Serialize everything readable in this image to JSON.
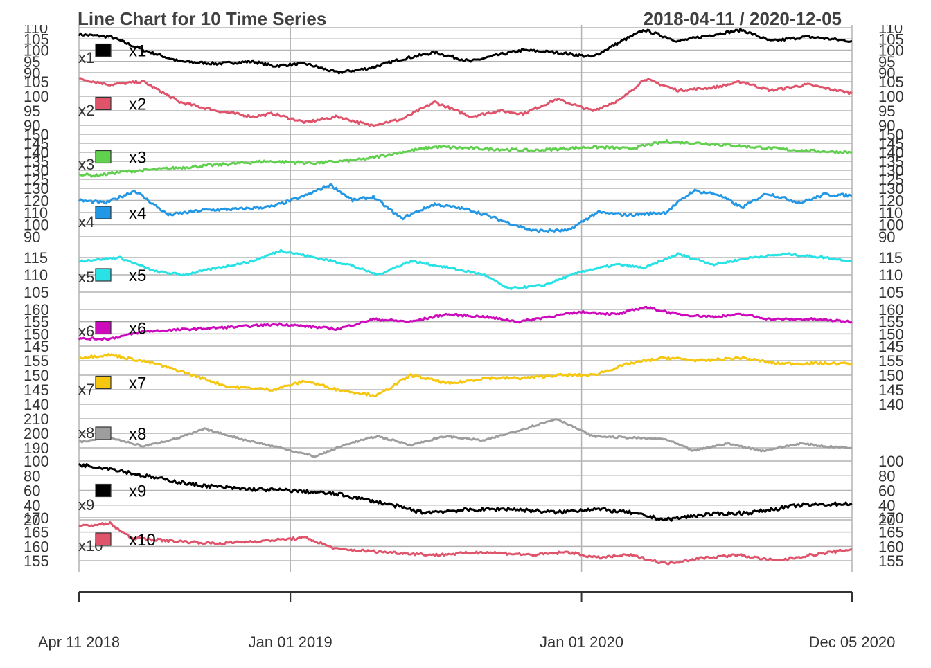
{
  "chart_data": {
    "type": "line",
    "title": "Line Chart for 10 Time Series",
    "date_range_text": "2018-04-11 / 2020-12-05",
    "x_start": "2018-04-11",
    "x_end": "2020-12-05",
    "x_ticks": [
      {
        "date": "2018-04-11",
        "label": "Apr 11 2018"
      },
      {
        "date": "2019-01-01",
        "label": "Jan 01 2019"
      },
      {
        "date": "2020-01-01",
        "label": "Jan 01 2020"
      },
      {
        "date": "2020-12-05",
        "label": "Dec 05 2020"
      }
    ],
    "grid": true,
    "legend": "per-panel, left",
    "panels": [
      {
        "name": "x1",
        "color": "#000000",
        "ylim": [
          90,
          110
        ],
        "y_ticks": [
          90,
          95,
          100,
          105,
          110
        ],
        "tick_labels": [
          "90",
          "95",
          "100",
          "105",
          "110"
        ],
        "right_axis": true,
        "points": [
          [
            "2018-04-11",
            107
          ],
          [
            "2018-05-20",
            106
          ],
          [
            "2018-07-01",
            100
          ],
          [
            "2018-08-15",
            95
          ],
          [
            "2018-10-01",
            94
          ],
          [
            "2018-11-15",
            95
          ],
          [
            "2018-12-10",
            93
          ],
          [
            "2019-01-20",
            94
          ],
          [
            "2019-03-01",
            90
          ],
          [
            "2019-04-10",
            92
          ],
          [
            "2019-05-20",
            96
          ],
          [
            "2019-07-01",
            99
          ],
          [
            "2019-08-15",
            95
          ],
          [
            "2019-09-20",
            98
          ],
          [
            "2019-10-20",
            100
          ],
          [
            "2019-12-01",
            99
          ],
          [
            "2020-01-15",
            97
          ],
          [
            "2020-02-20",
            104
          ],
          [
            "2020-03-20",
            109
          ],
          [
            "2020-05-01",
            104
          ],
          [
            "2020-06-15",
            107
          ],
          [
            "2020-07-20",
            109
          ],
          [
            "2020-08-25",
            104
          ],
          [
            "2020-10-10",
            106
          ],
          [
            "2020-12-05",
            104
          ]
        ]
      },
      {
        "name": "x2",
        "color": "#DF536B",
        "ylim": [
          90,
          105
        ],
        "y_ticks": [
          90,
          95,
          100,
          105
        ],
        "tick_labels": [
          "90",
          "95",
          "100",
          "105"
        ],
        "right_axis": true,
        "points": [
          [
            "2018-04-11",
            106
          ],
          [
            "2018-05-20",
            104
          ],
          [
            "2018-07-01",
            105
          ],
          [
            "2018-08-15",
            98
          ],
          [
            "2018-10-01",
            95
          ],
          [
            "2018-11-15",
            93
          ],
          [
            "2018-12-10",
            94
          ],
          [
            "2019-01-20",
            91
          ],
          [
            "2019-03-01",
            93
          ],
          [
            "2019-04-10",
            90
          ],
          [
            "2019-05-20",
            92
          ],
          [
            "2019-07-01",
            98
          ],
          [
            "2019-08-15",
            93
          ],
          [
            "2019-09-20",
            95
          ],
          [
            "2019-10-20",
            94
          ],
          [
            "2019-12-01",
            99
          ],
          [
            "2020-01-15",
            95
          ],
          [
            "2020-02-20",
            99
          ],
          [
            "2020-03-20",
            106
          ],
          [
            "2020-05-01",
            102
          ],
          [
            "2020-06-15",
            103
          ],
          [
            "2020-07-20",
            105
          ],
          [
            "2020-08-25",
            102
          ],
          [
            "2020-10-10",
            104
          ],
          [
            "2020-12-05",
            101
          ]
        ]
      },
      {
        "name": "x3",
        "color": "#61D04F",
        "ylim": [
          125,
          150
        ],
        "y_ticks": [
          125,
          130,
          135,
          140,
          145,
          150
        ],
        "tick_labels": [
          "125",
          "130",
          "135",
          "140",
          "145",
          "150"
        ],
        "right_axis": true,
        "points": [
          [
            "2018-04-11",
            128
          ],
          [
            "2018-05-01",
            127
          ],
          [
            "2018-06-01",
            129
          ],
          [
            "2018-08-01",
            131
          ],
          [
            "2018-10-01",
            133
          ],
          [
            "2018-12-01",
            135
          ],
          [
            "2019-02-01",
            134
          ],
          [
            "2019-04-01",
            136
          ],
          [
            "2019-06-01",
            141
          ],
          [
            "2019-07-01",
            143
          ],
          [
            "2019-09-01",
            142
          ],
          [
            "2019-11-01",
            141
          ],
          [
            "2020-01-15",
            143
          ],
          [
            "2020-03-01",
            142
          ],
          [
            "2020-04-15",
            146
          ],
          [
            "2020-06-01",
            145
          ],
          [
            "2020-08-01",
            143
          ],
          [
            "2020-10-01",
            141
          ],
          [
            "2020-12-05",
            140
          ]
        ]
      },
      {
        "name": "x4",
        "color": "#2297E6",
        "ylim": [
          90,
          130
        ],
        "y_ticks": [
          90,
          100,
          110,
          120,
          130
        ],
        "tick_labels": [
          "90",
          "100",
          "110",
          "120",
          "130"
        ],
        "right_axis": true,
        "points": [
          [
            "2018-04-11",
            120
          ],
          [
            "2018-05-15",
            118
          ],
          [
            "2018-06-20",
            128
          ],
          [
            "2018-08-01",
            108
          ],
          [
            "2018-09-15",
            112
          ],
          [
            "2018-11-01",
            113
          ],
          [
            "2018-12-10",
            115
          ],
          [
            "2019-01-20",
            124
          ],
          [
            "2019-02-20",
            133
          ],
          [
            "2019-03-20",
            120
          ],
          [
            "2019-04-15",
            123
          ],
          [
            "2019-05-20",
            105
          ],
          [
            "2019-07-01",
            117
          ],
          [
            "2019-08-15",
            112
          ],
          [
            "2019-09-25",
            103
          ],
          [
            "2019-11-01",
            95
          ],
          [
            "2019-12-15",
            95
          ],
          [
            "2020-01-20",
            110
          ],
          [
            "2020-03-01",
            108
          ],
          [
            "2020-04-15",
            110
          ],
          [
            "2020-05-20",
            128
          ],
          [
            "2020-06-20",
            125
          ],
          [
            "2020-07-20",
            114
          ],
          [
            "2020-08-20",
            126
          ],
          [
            "2020-10-01",
            118
          ],
          [
            "2020-11-01",
            125
          ],
          [
            "2020-12-05",
            124
          ]
        ]
      },
      {
        "name": "x5",
        "color": "#28E2E5",
        "ylim": [
          105,
          115
        ],
        "y_ticks": [
          105,
          110,
          115
        ],
        "tick_labels": [
          "105",
          "110",
          "115"
        ],
        "right_axis": true,
        "points": [
          [
            "2018-04-11",
            114
          ],
          [
            "2018-06-01",
            115
          ],
          [
            "2018-07-15",
            111
          ],
          [
            "2018-08-20",
            110
          ],
          [
            "2018-10-01",
            112
          ],
          [
            "2018-11-15",
            114
          ],
          [
            "2018-12-20",
            117
          ],
          [
            "2019-02-01",
            115
          ],
          [
            "2019-03-15",
            113
          ],
          [
            "2019-04-20",
            110
          ],
          [
            "2019-06-01",
            114
          ],
          [
            "2019-07-20",
            112
          ],
          [
            "2019-09-01",
            110
          ],
          [
            "2019-10-01",
            106
          ],
          [
            "2019-11-15",
            107
          ],
          [
            "2020-01-01",
            111
          ],
          [
            "2020-02-15",
            113
          ],
          [
            "2020-03-20",
            112
          ],
          [
            "2020-05-01",
            116
          ],
          [
            "2020-06-15",
            113
          ],
          [
            "2020-08-01",
            115
          ],
          [
            "2020-09-15",
            116
          ],
          [
            "2020-11-01",
            115
          ],
          [
            "2020-12-05",
            114
          ]
        ]
      },
      {
        "name": "x6",
        "color": "#CD0BBC",
        "ylim": [
          145,
          160
        ],
        "y_ticks": [
          145,
          150,
          155,
          160
        ],
        "tick_labels": [
          "145",
          "150",
          "155",
          "160"
        ],
        "right_axis": true,
        "points": [
          [
            "2018-04-11",
            148
          ],
          [
            "2018-05-20",
            148
          ],
          [
            "2018-07-01",
            151
          ],
          [
            "2018-09-01",
            152
          ],
          [
            "2018-11-01",
            153
          ],
          [
            "2018-12-20",
            154
          ],
          [
            "2019-03-01",
            152
          ],
          [
            "2019-04-15",
            156
          ],
          [
            "2019-06-01",
            155
          ],
          [
            "2019-07-15",
            158
          ],
          [
            "2019-09-01",
            157
          ],
          [
            "2019-10-15",
            155
          ],
          [
            "2019-11-20",
            157
          ],
          [
            "2020-01-01",
            159
          ],
          [
            "2020-02-15",
            158
          ],
          [
            "2020-03-20",
            161
          ],
          [
            "2020-05-01",
            158
          ],
          [
            "2020-06-15",
            157
          ],
          [
            "2020-07-20",
            158
          ],
          [
            "2020-08-25",
            156
          ],
          [
            "2020-10-15",
            156
          ],
          [
            "2020-12-05",
            155
          ]
        ]
      },
      {
        "name": "x7",
        "color": "#F5C710",
        "ylim": [
          140,
          155
        ],
        "y_ticks": [
          140,
          145,
          150,
          155
        ],
        "tick_labels": [
          "140",
          "145",
          "150",
          "155"
        ],
        "right_axis": true,
        "points": [
          [
            "2018-04-11",
            156
          ],
          [
            "2018-05-20",
            157
          ],
          [
            "2018-07-15",
            154
          ],
          [
            "2018-09-01",
            150
          ],
          [
            "2018-10-15",
            146
          ],
          [
            "2018-12-10",
            145
          ],
          [
            "2019-01-20",
            148
          ],
          [
            "2019-03-01",
            145
          ],
          [
            "2019-04-20",
            143
          ],
          [
            "2019-06-01",
            150
          ],
          [
            "2019-07-20",
            147
          ],
          [
            "2019-09-01",
            149
          ],
          [
            "2019-10-20",
            149
          ],
          [
            "2019-12-01",
            150
          ],
          [
            "2020-01-15",
            150
          ],
          [
            "2020-03-01",
            154
          ],
          [
            "2020-04-15",
            156
          ],
          [
            "2020-06-01",
            155
          ],
          [
            "2020-07-20",
            156
          ],
          [
            "2020-09-01",
            154
          ],
          [
            "2020-10-15",
            154
          ],
          [
            "2020-12-05",
            154
          ]
        ]
      },
      {
        "name": "x8",
        "color": "#9E9E9E",
        "ylim": [
          190,
          210
        ],
        "y_ticks": [
          190,
          200,
          210
        ],
        "tick_labels": [
          "190",
          "200",
          "210"
        ],
        "right_axis": false,
        "points": [
          [
            "2018-04-11",
            194
          ],
          [
            "2018-05-20",
            197
          ],
          [
            "2018-07-01",
            191
          ],
          [
            "2018-08-15",
            197
          ],
          [
            "2018-09-15",
            203
          ],
          [
            "2018-11-01",
            196
          ],
          [
            "2018-12-20",
            190
          ],
          [
            "2019-02-01",
            184
          ],
          [
            "2019-03-15",
            193
          ],
          [
            "2019-04-20",
            198
          ],
          [
            "2019-06-01",
            192
          ],
          [
            "2019-07-15",
            198
          ],
          [
            "2019-09-01",
            195
          ],
          [
            "2019-10-20",
            203
          ],
          [
            "2019-12-01",
            210
          ],
          [
            "2020-01-15",
            198
          ],
          [
            "2020-03-01",
            197
          ],
          [
            "2020-04-15",
            196
          ],
          [
            "2020-05-20",
            188
          ],
          [
            "2020-07-01",
            193
          ],
          [
            "2020-08-15",
            188
          ],
          [
            "2020-10-01",
            193
          ],
          [
            "2020-11-01",
            191
          ],
          [
            "2020-12-05",
            190
          ]
        ]
      },
      {
        "name": "x9",
        "color": "#000000",
        "ylim": [
          20,
          100
        ],
        "y_ticks": [
          20,
          40,
          60,
          80,
          100
        ],
        "tick_labels": [
          "20",
          "40",
          "60",
          "80",
          "100"
        ],
        "right_axis": true,
        "points": [
          [
            "2018-04-11",
            95
          ],
          [
            "2018-05-20",
            90
          ],
          [
            "2018-07-01",
            80
          ],
          [
            "2018-09-01",
            68
          ],
          [
            "2018-11-01",
            62
          ],
          [
            "2019-01-01",
            60
          ],
          [
            "2019-03-01",
            55
          ],
          [
            "2019-05-01",
            42
          ],
          [
            "2019-06-15",
            30
          ],
          [
            "2019-08-01",
            33
          ],
          [
            "2019-10-01",
            35
          ],
          [
            "2019-12-01",
            30
          ],
          [
            "2020-01-15",
            35
          ],
          [
            "2020-03-01",
            30
          ],
          [
            "2020-04-15",
            20
          ],
          [
            "2020-06-01",
            27
          ],
          [
            "2020-08-01",
            30
          ],
          [
            "2020-10-01",
            40
          ],
          [
            "2020-12-05",
            42
          ]
        ]
      },
      {
        "name": "x10",
        "color": "#DF536B",
        "ylim": [
          155,
          170
        ],
        "y_ticks": [
          155,
          160,
          165,
          170
        ],
        "tick_labels": [
          "155",
          "160",
          "165",
          "170"
        ],
        "right_axis": true,
        "points": [
          [
            "2018-04-11",
            167
          ],
          [
            "2018-05-20",
            168
          ],
          [
            "2018-06-15",
            163
          ],
          [
            "2018-08-01",
            162
          ],
          [
            "2018-10-01",
            161
          ],
          [
            "2018-12-01",
            162
          ],
          [
            "2019-01-20",
            163
          ],
          [
            "2019-03-01",
            159
          ],
          [
            "2019-05-01",
            158
          ],
          [
            "2019-07-01",
            157
          ],
          [
            "2019-09-01",
            158
          ],
          [
            "2019-11-01",
            157
          ],
          [
            "2019-12-15",
            158
          ],
          [
            "2020-01-20",
            156
          ],
          [
            "2020-03-01",
            157
          ],
          [
            "2020-04-15",
            154
          ],
          [
            "2020-06-01",
            156
          ],
          [
            "2020-07-15",
            157
          ],
          [
            "2020-09-01",
            155
          ],
          [
            "2020-10-15",
            157
          ],
          [
            "2020-12-05",
            159
          ]
        ]
      }
    ]
  }
}
